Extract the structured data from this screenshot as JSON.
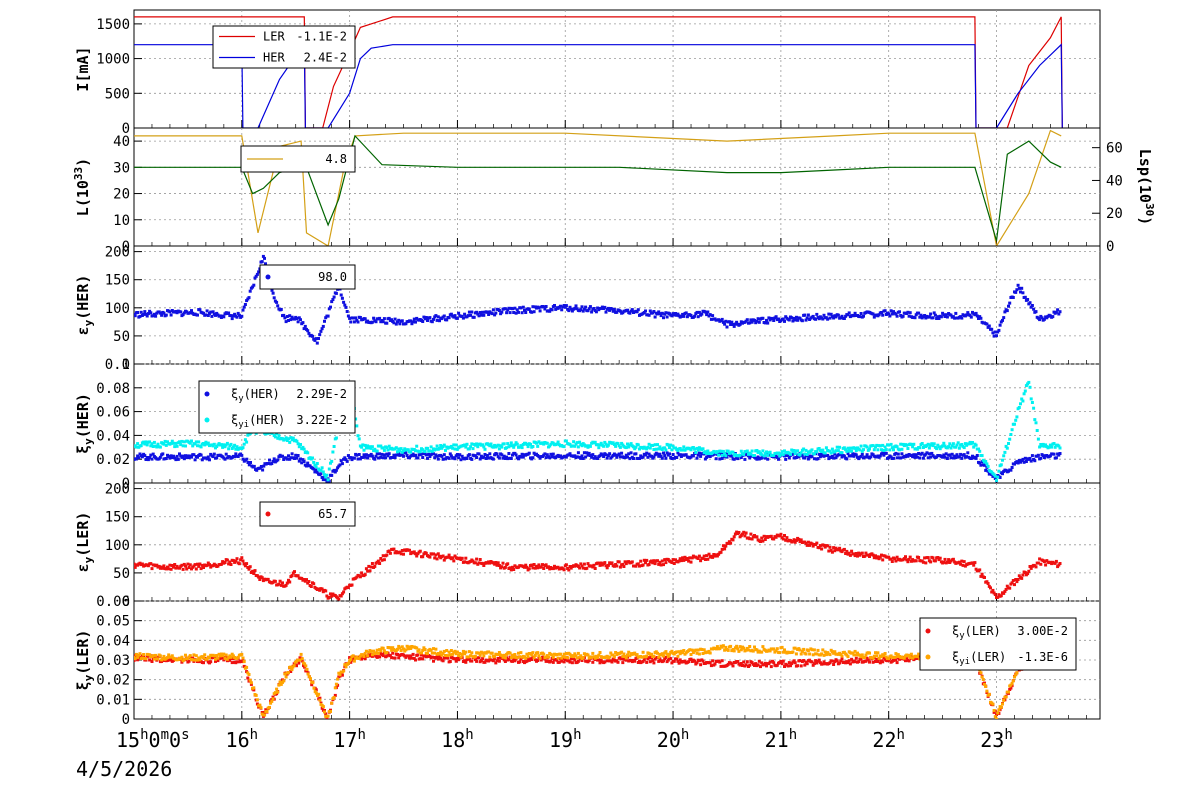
{
  "colors": {
    "ler": "#dd0000",
    "her": "#0000dd",
    "lum_green": "#006400",
    "lum_gold": "#d4a017",
    "xi_her": "#1010e0",
    "xi_her_i": "#00f0f0",
    "xi_ler": "#ee1010",
    "xi_ler_i": "#ffa500",
    "grid": "#999999"
  },
  "time_axis": {
    "ticks": [
      {
        "t": 15,
        "label": "15h0m0s"
      },
      {
        "t": 16,
        "label": "16h"
      },
      {
        "t": 17,
        "label": "17h"
      },
      {
        "t": 18,
        "label": "18h"
      },
      {
        "t": 19,
        "label": "19h"
      },
      {
        "t": 20,
        "label": "20h"
      },
      {
        "t": 21,
        "label": "21h"
      },
      {
        "t": 22,
        "label": "22h"
      },
      {
        "t": 23,
        "label": "23h"
      }
    ],
    "date": "4/5/2026",
    "range": [
      15,
      23.96
    ]
  },
  "chart_data": [
    {
      "type": "line",
      "ylabel": "I[mA]",
      "ylim": [
        0,
        1700
      ],
      "yticks": [
        "0",
        "500",
        "1000",
        "1500"
      ],
      "ytick_values": [
        0,
        500,
        1000,
        1500
      ],
      "grid": true,
      "legend": {
        "placement": "top-left",
        "entries": [
          {
            "name": "LER",
            "value": "-1.1E-2",
            "color": "ler"
          },
          {
            "name": "HER",
            "value": "2.4E-2",
            "color": "her"
          }
        ]
      },
      "series": [
        {
          "name": "LER",
          "color": "ler",
          "x": [
            15,
            16.58,
            16.59,
            16.75,
            16.85,
            17.0,
            17.1,
            17.3,
            17.4,
            22.8,
            22.81,
            23.1,
            23.3,
            23.5,
            23.6,
            23.61
          ],
          "y": [
            1600,
            1600,
            0,
            0,
            600,
            1100,
            1450,
            1550,
            1600,
            1600,
            0,
            0,
            900,
            1300,
            1600,
            0
          ]
        },
        {
          "name": "HER",
          "color": "her",
          "x": [
            15,
            16.0,
            16.01,
            16.15,
            16.35,
            16.55,
            16.56,
            16.58,
            16.59,
            16.8,
            17.0,
            17.1,
            17.2,
            17.4,
            22.8,
            22.81,
            23.0,
            23.2,
            23.4,
            23.6,
            23.61
          ],
          "y": [
            1200,
            1200,
            0,
            0,
            700,
            1150,
            1200,
            1200,
            0,
            0,
            500,
            1000,
            1150,
            1200,
            1200,
            0,
            0,
            500,
            900,
            1200,
            0
          ]
        }
      ]
    },
    {
      "type": "line",
      "ylabel": "L(10^33)",
      "ylabel_parts": {
        "base": "L(10",
        "exp": "33",
        "close": ")"
      },
      "ylim": [
        0,
        45
      ],
      "yticks": [
        "0",
        "10",
        "20",
        "30",
        "40"
      ],
      "ytick_values": [
        0,
        10,
        20,
        30,
        40
      ],
      "ylabel_right": "Lsp(10^30)",
      "ylabel_right_parts": {
        "base": "Lsp(10",
        "exp": "30",
        "close": ")"
      },
      "ylim_right": [
        0,
        72
      ],
      "yticks_right": [
        "0",
        "20",
        "40",
        "60"
      ],
      "ytick_values_right": [
        0,
        20,
        40,
        60
      ],
      "grid": true,
      "legend": {
        "placement": "top-left",
        "entries": [
          {
            "name": "",
            "value": "4.8",
            "color": "lum_gold"
          }
        ]
      },
      "series": [
        {
          "name": "",
          "color": "lum_gold",
          "x": [
            15,
            16.0,
            16.15,
            16.35,
            16.55,
            16.6,
            16.8,
            16.95,
            17.05,
            17.5,
            19.0,
            20.5,
            21.5,
            22.0,
            22.8,
            23.0,
            23.3,
            23.5,
            23.6
          ],
          "y": [
            42,
            42,
            5,
            38,
            40,
            5,
            0,
            30,
            42,
            43,
            43,
            40,
            42,
            43,
            43,
            0,
            20,
            44,
            42
          ]
        },
        {
          "name": "",
          "color": "lum_green",
          "x": [
            15,
            16.0,
            16.1,
            16.2,
            16.35,
            16.55,
            16.6,
            16.8,
            16.9,
            17.05,
            17.3,
            18.0,
            19.5,
            20.5,
            21.0,
            21.5,
            22.0,
            22.8,
            23.0,
            23.1,
            23.3,
            23.5,
            23.6
          ],
          "y": [
            30,
            30,
            20,
            22,
            28,
            30,
            30,
            8,
            18,
            42,
            31,
            30,
            30,
            28,
            28,
            29,
            30,
            30,
            2,
            35,
            40,
            32,
            30
          ]
        }
      ]
    },
    {
      "type": "scatter",
      "ylabel": "εy(HER)",
      "ylabel_parts": {
        "base": "ε",
        "sub": "y",
        "rest": "(HER)"
      },
      "ylim": [
        0,
        210
      ],
      "yticks": [
        "0",
        "50",
        "100",
        "150",
        "200"
      ],
      "ytick_values": [
        0,
        50,
        100,
        150,
        200
      ],
      "grid": true,
      "legend": {
        "placement": "top-left",
        "entries": [
          {
            "name": "",
            "value": "98.0",
            "color": "xi_her"
          }
        ]
      },
      "series": [
        {
          "name": "",
          "color": "xi_her",
          "x": [
            15.0,
            15.3,
            15.6,
            15.9,
            16.0,
            16.2,
            16.25,
            16.3,
            16.4,
            16.5,
            16.7,
            16.8,
            16.9,
            17.0,
            17.5,
            18.0,
            18.5,
            19.0,
            19.5,
            20.0,
            20.3,
            20.5,
            21.0,
            21.5,
            22.0,
            22.5,
            22.8,
            23.0,
            23.1,
            23.2,
            23.4,
            23.6
          ],
          "y": [
            88,
            90,
            92,
            86,
            85,
            190,
            160,
            120,
            80,
            85,
            40,
            90,
            140,
            80,
            75,
            85,
            95,
            100,
            95,
            85,
            90,
            70,
            80,
            85,
            90,
            85,
            88,
            50,
            100,
            140,
            80,
            95
          ]
        }
      ]
    },
    {
      "type": "scatter",
      "ylabel": "ξy(HER)",
      "ylabel_parts": {
        "base": "ξ",
        "sub": "y",
        "rest": "(HER)"
      },
      "ylim": [
        0,
        0.1
      ],
      "yticks": [
        "0",
        "0.02",
        "0.04",
        "0.06",
        "0.08",
        "0.1"
      ],
      "ytick_values": [
        0,
        0.02,
        0.04,
        0.06,
        0.08,
        0.1
      ],
      "grid": true,
      "legend": {
        "placement": "top-left",
        "entries": [
          {
            "name_parts": {
              "base": "ξ",
              "sub": "y",
              "rest": "(HER)"
            },
            "value": "2.29E-2",
            "color": "xi_her"
          },
          {
            "name_parts": {
              "base": "ξ",
              "sub": "yi",
              "rest": "(HER)"
            },
            "value": "3.22E-2",
            "color": "xi_her_i"
          }
        ]
      },
      "series": [
        {
          "name": "",
          "color": "xi_her",
          "x": [
            15.0,
            15.5,
            16.0,
            16.15,
            16.3,
            16.5,
            16.8,
            16.9,
            17.0,
            17.5,
            18.0,
            19.0,
            20.0,
            21.0,
            22.0,
            22.8,
            23.0,
            23.2,
            23.4,
            23.6
          ],
          "y": [
            0.022,
            0.022,
            0.022,
            0.01,
            0.02,
            0.023,
            0.002,
            0.015,
            0.022,
            0.023,
            0.022,
            0.023,
            0.023,
            0.022,
            0.023,
            0.023,
            0.003,
            0.018,
            0.022,
            0.023
          ]
        },
        {
          "name": "",
          "color": "xi_her_i",
          "x": [
            15.0,
            15.5,
            16.0,
            16.1,
            16.3,
            16.5,
            16.8,
            16.9,
            17.0,
            17.1,
            17.5,
            18.0,
            19.0,
            20.0,
            20.5,
            21.0,
            22.0,
            22.8,
            23.0,
            23.2,
            23.3,
            23.4,
            23.6
          ],
          "y": [
            0.032,
            0.033,
            0.03,
            0.045,
            0.04,
            0.035,
            0.005,
            0.05,
            0.085,
            0.03,
            0.028,
            0.03,
            0.033,
            0.03,
            0.025,
            0.025,
            0.03,
            0.032,
            0.003,
            0.06,
            0.085,
            0.03,
            0.032
          ]
        }
      ]
    },
    {
      "type": "scatter",
      "ylabel": "εy(LER)",
      "ylabel_parts": {
        "base": "ε",
        "sub": "y",
        "rest": "(LER)"
      },
      "ylim": [
        0,
        210
      ],
      "yticks": [
        "0",
        "50",
        "100",
        "150",
        "200"
      ],
      "ytick_values": [
        0,
        50,
        100,
        150,
        200
      ],
      "grid": true,
      "legend": {
        "placement": "top-left",
        "entries": [
          {
            "name": "",
            "value": "65.7",
            "color": "xi_ler"
          }
        ]
      },
      "series": [
        {
          "name": "",
          "color": "xi_ler",
          "x": [
            15.0,
            15.3,
            15.6,
            15.9,
            16.0,
            16.2,
            16.4,
            16.5,
            16.8,
            16.9,
            17.0,
            17.2,
            17.4,
            17.6,
            18.0,
            18.5,
            19.0,
            19.5,
            20.0,
            20.4,
            20.6,
            20.8,
            21.0,
            21.2,
            21.5,
            22.0,
            22.5,
            22.8,
            23.0,
            23.2,
            23.4,
            23.6
          ],
          "y": [
            65,
            60,
            62,
            70,
            72,
            35,
            30,
            50,
            10,
            5,
            30,
            60,
            90,
            85,
            75,
            60,
            60,
            65,
            70,
            80,
            120,
            110,
            115,
            105,
            90,
            75,
            72,
            65,
            5,
            40,
            70,
            65
          ]
        }
      ]
    },
    {
      "type": "scatter",
      "ylabel": "ξy(LER)",
      "ylabel_parts": {
        "base": "ξ",
        "sub": "y",
        "rest": "(LER)"
      },
      "ylim": [
        0,
        0.06
      ],
      "yticks": [
        "0",
        "0.01",
        "0.02",
        "0.03",
        "0.04",
        "0.05",
        "0.06"
      ],
      "ytick_values": [
        0,
        0.01,
        0.02,
        0.03,
        0.04,
        0.05,
        0.06
      ],
      "grid": true,
      "legend": {
        "placement": "top-right",
        "entries": [
          {
            "name_parts": {
              "base": "ξ",
              "sub": "y",
              "rest": "(LER)"
            },
            "value": "3.00E-2",
            "color": "xi_ler"
          },
          {
            "name_parts": {
              "base": "ξ",
              "sub": "yi",
              "rest": "(LER)"
            },
            "value": "-1.3E-6",
            "color": "xi_ler_i"
          }
        ]
      },
      "series": [
        {
          "name": "",
          "color": "xi_ler",
          "x": [
            15.0,
            15.5,
            16.0,
            16.2,
            16.4,
            16.55,
            16.8,
            16.9,
            17.0,
            17.2,
            18.0,
            19.0,
            20.0,
            20.5,
            21.0,
            22.0,
            22.8,
            23.0,
            23.2,
            23.4,
            23.6
          ],
          "y": [
            0.031,
            0.03,
            0.03,
            0.001,
            0.022,
            0.031,
            0.0,
            0.02,
            0.03,
            0.033,
            0.03,
            0.03,
            0.03,
            0.028,
            0.028,
            0.03,
            0.031,
            0.001,
            0.025,
            0.032,
            0.03
          ]
        },
        {
          "name": "",
          "color": "xi_ler_i",
          "x": [
            15.0,
            15.5,
            16.0,
            16.2,
            16.4,
            16.55,
            16.8,
            16.9,
            17.0,
            17.2,
            17.5,
            18.0,
            19.0,
            20.0,
            20.5,
            21.0,
            22.0,
            22.8,
            23.0,
            23.2,
            23.4,
            23.6
          ],
          "y": [
            0.032,
            0.031,
            0.032,
            0.001,
            0.022,
            0.032,
            0.0,
            0.022,
            0.03,
            0.034,
            0.036,
            0.033,
            0.032,
            0.033,
            0.036,
            0.035,
            0.032,
            0.032,
            0.001,
            0.026,
            0.034,
            0.031
          ]
        }
      ]
    }
  ]
}
